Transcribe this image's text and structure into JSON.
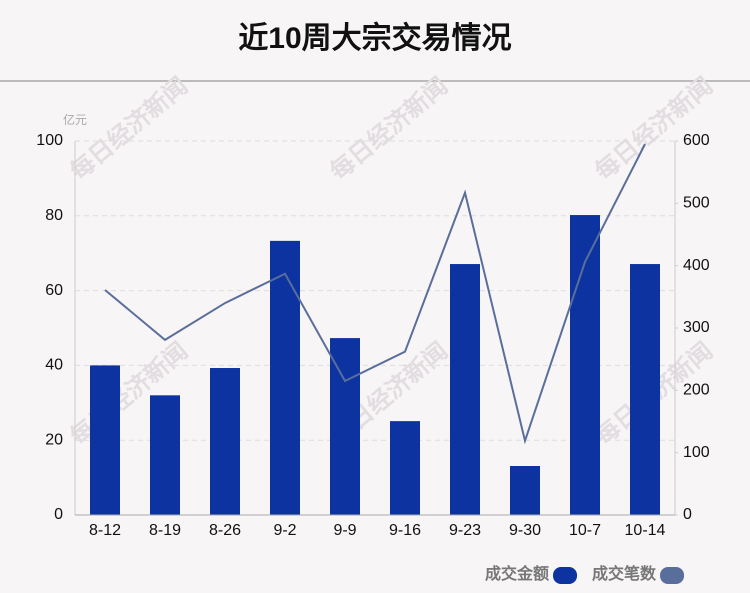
{
  "chart_data": {
    "type": "bar-line",
    "title": "近10周大宗交易情况",
    "y_label": "亿元",
    "watermark": "每日经济新闻",
    "categories": [
      "8-12",
      "8-19",
      "8-26",
      "9-2",
      "9-9",
      "9-16",
      "9-23",
      "9-30",
      "10-7",
      "10-14"
    ],
    "series": [
      {
        "name": "成交金额",
        "type": "bar",
        "color": "#0c33a0",
        "values": [
          40,
          32,
          39.3,
          73.3,
          47.3,
          25.1,
          67.1,
          13.1,
          80.2,
          67.1
        ]
      },
      {
        "name": "成交笔数",
        "type": "line",
        "axis": "y2",
        "color": "#5a6e9b",
        "values": [
          361,
          281,
          340,
          387,
          215,
          262,
          517,
          119,
          406,
          595
        ]
      }
    ],
    "ylim": [
      0,
      100
    ],
    "yticks": [
      0,
      20,
      40,
      60,
      80,
      100
    ],
    "y2lim": [
      0,
      600
    ],
    "y2ticks": [
      0,
      100,
      200,
      300,
      400,
      500,
      600
    ],
    "grid": true
  }
}
